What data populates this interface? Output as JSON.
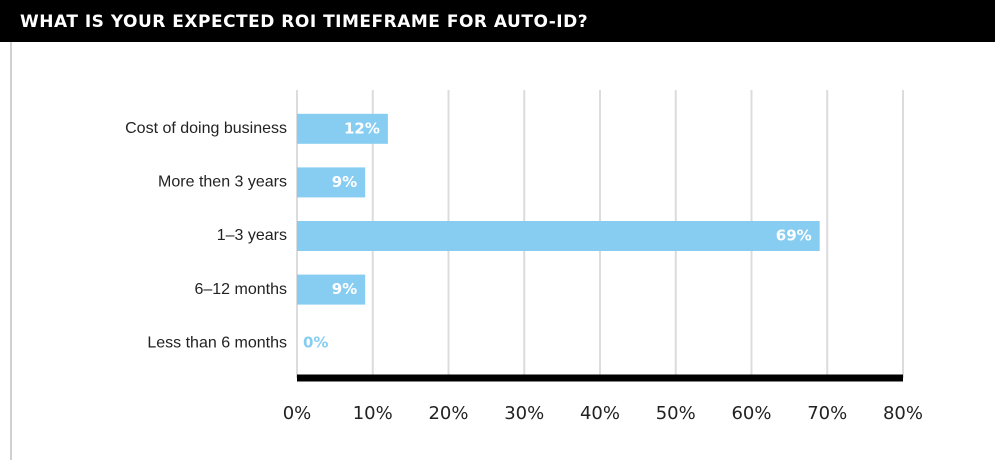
{
  "chart_data": {
    "type": "bar",
    "orientation": "horizontal",
    "title": "WHAT IS YOUR EXPECTED ROI TIMEFRAME FOR AUTO-ID?",
    "categories": [
      "Cost of doing business",
      "More then 3 years",
      "1–3 years",
      "6–12 months",
      "Less than 6 months"
    ],
    "values": [
      12,
      9,
      69,
      9,
      0
    ],
    "value_labels": [
      "12%",
      "9%",
      "69%",
      "9%",
      "0%"
    ],
    "color": "#87cdf2",
    "xlim": [
      0,
      80
    ],
    "xticks": [
      {
        "value": 0,
        "label": "0%"
      },
      {
        "value": 10,
        "label": "10%"
      },
      {
        "value": 20,
        "label": "20%"
      },
      {
        "value": 30,
        "label": "30%"
      },
      {
        "value": 40,
        "label": "40%"
      },
      {
        "value": 50,
        "label": "50%"
      },
      {
        "value": 60,
        "label": "60%"
      },
      {
        "value": 70,
        "label": "70%"
      },
      {
        "value": 80,
        "label": "80%"
      }
    ],
    "grid": true
  }
}
